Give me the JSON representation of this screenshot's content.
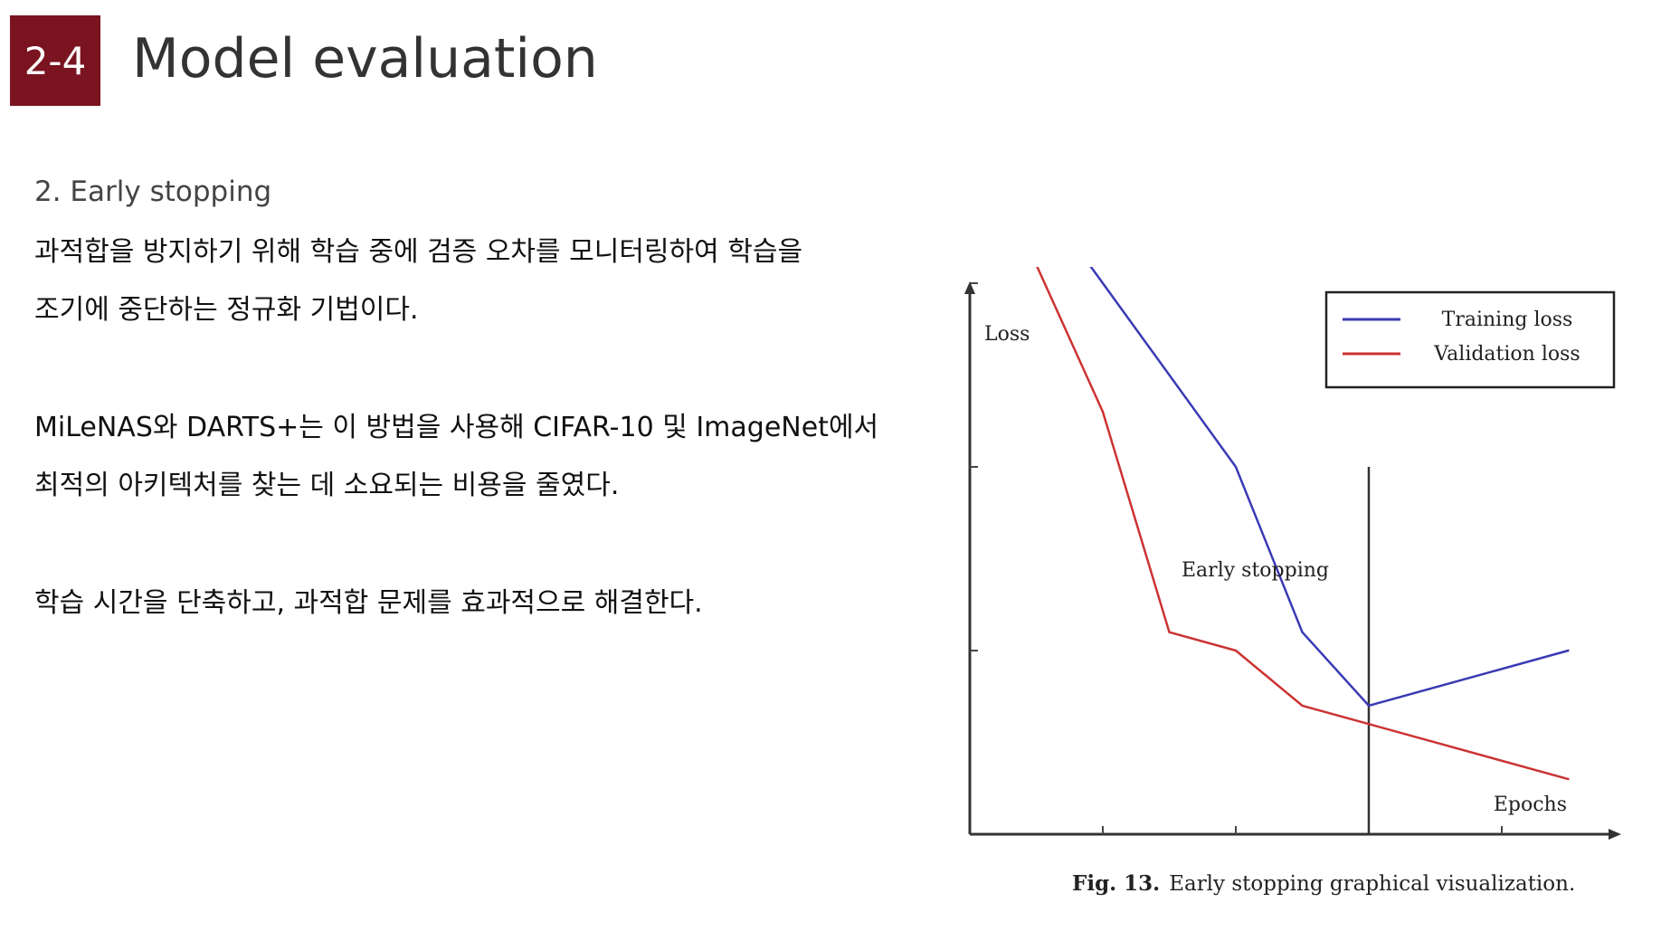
{
  "header": {
    "section_number": "2-4",
    "title": "Model evaluation"
  },
  "content": {
    "subtitle": "2. Early stopping",
    "paragraphs": [
      "과적합을 방지하기 위해 학습 중에 검증 오차를 모니터링하여 학습을",
      "조기에 중단하는 정규화 기법이다.",
      "MiLeNAS와 DARTS+는 이 방법을 사용해 CIFAR-10 및 ImageNet에서",
      "최적의 아키텍처를 찾는 데 소요되는 비용을 줄였다.",
      "학습 시간을 단축하고, 과적합 문제를 효과적으로 해결한다."
    ]
  },
  "figure": {
    "caption_label": "Fig. 13.",
    "caption_text": "Early stopping graphical visualization."
  },
  "chart_data": {
    "type": "line",
    "xlabel": "Epochs",
    "ylabel": "Loss",
    "x": [
      0,
      1,
      2,
      3,
      4,
      5,
      6,
      7,
      8,
      9
    ],
    "xlim": [
      0,
      10
    ],
    "ylim": [
      0,
      10
    ],
    "series": [
      {
        "name": "Training loss",
        "color": "#3a3ab4",
        "x": [
          0,
          2,
          4,
          5,
          6,
          9
        ],
        "values": [
          8,
          6,
          4,
          2.2,
          1.4,
          2
        ]
      },
      {
        "name": "Validation loss",
        "color": "#cc3333",
        "x": [
          0,
          1,
          2,
          3,
          4,
          5,
          6,
          9
        ],
        "values": [
          8,
          6.2,
          4.6,
          2.2,
          2,
          1.4,
          1.2,
          0.6
        ]
      }
    ],
    "annotations": [
      {
        "text": "Early stopping",
        "x": 6
      }
    ],
    "grid": false,
    "legend": "top-right"
  }
}
